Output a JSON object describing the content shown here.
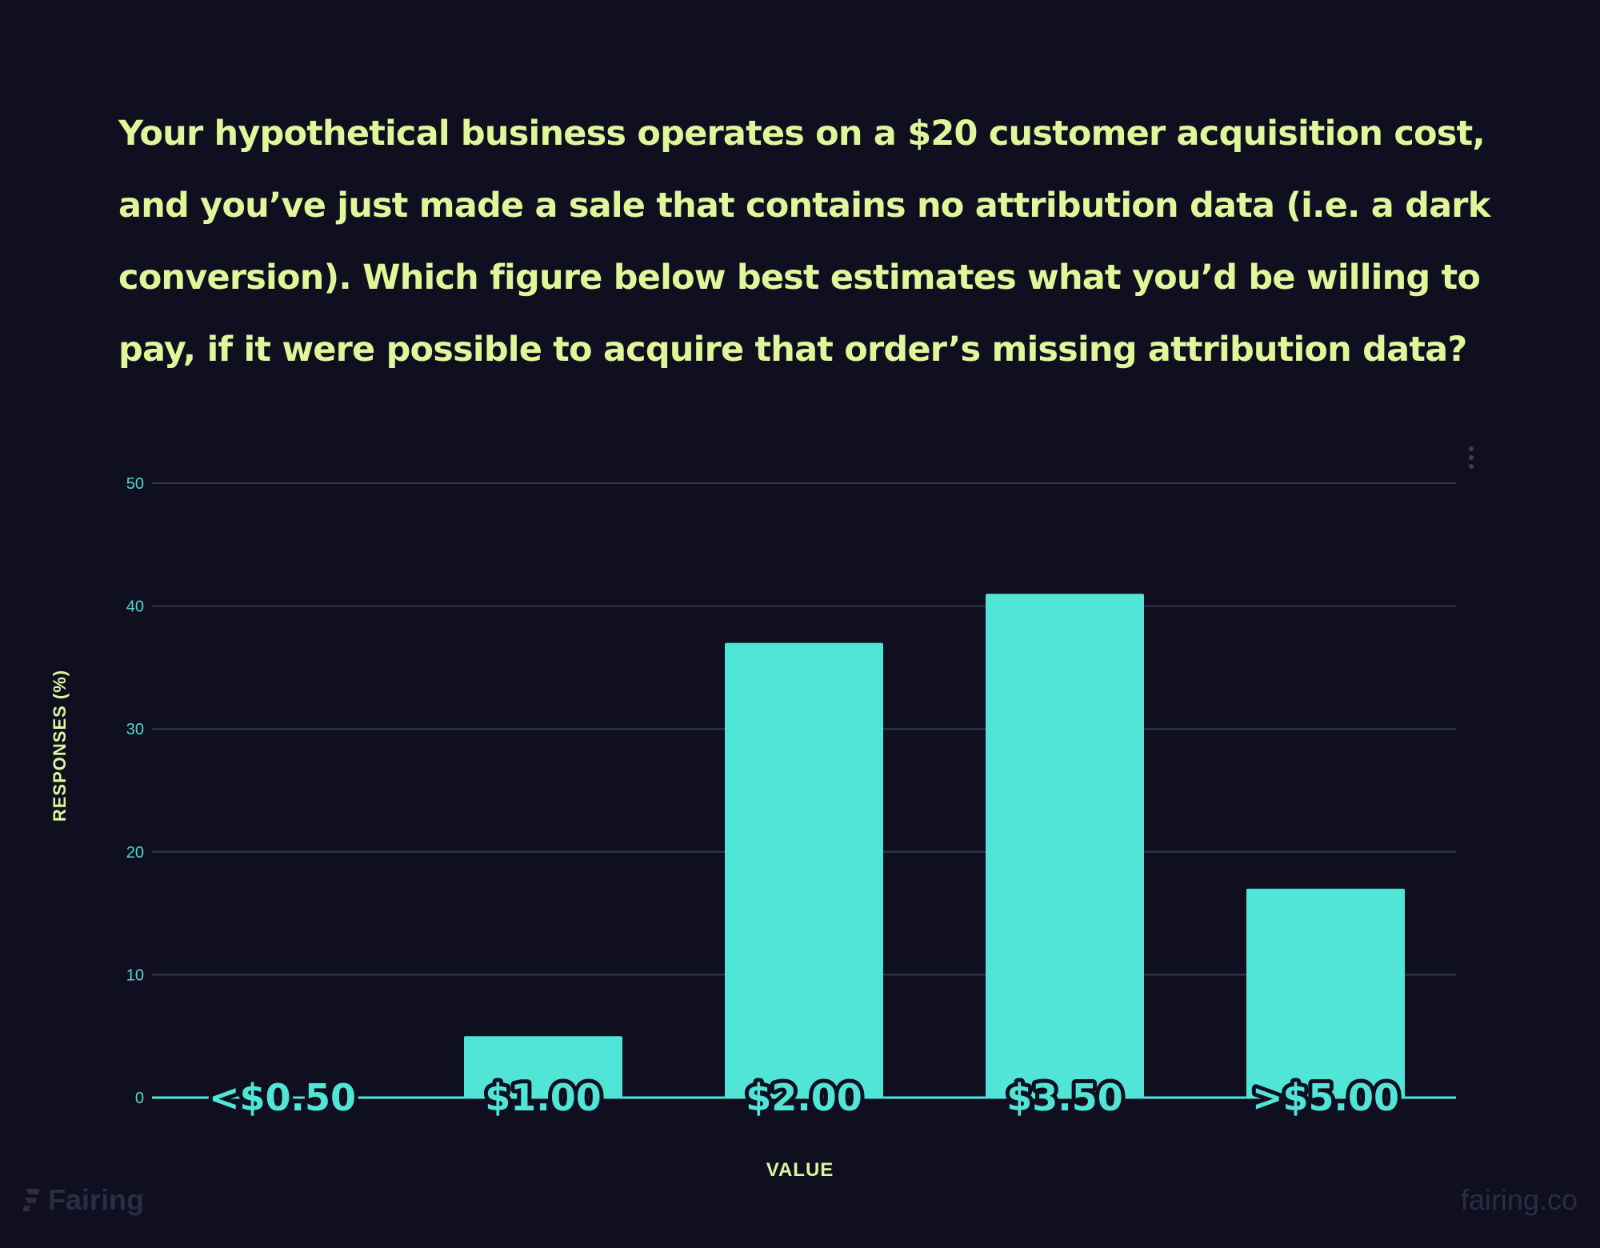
{
  "question": "Your hypothetical business operates on a $20 customer acquisition cost, and you’ve just made a sale that contains no attribution data (i.e. a dark conversion). Which figure below best estimates what you’d be willing to pay, if it were possible to acquire that order’s missing attribution data?",
  "chart_data": {
    "type": "bar",
    "categories": [
      "<$0.50",
      "$1.00",
      "$2.00",
      "$3.50",
      ">$5.00"
    ],
    "values": [
      0,
      5,
      37,
      41,
      17
    ],
    "title": "",
    "xlabel": "VALUE",
    "ylabel": "RESPONSES (%)",
    "ylim": [
      0,
      50
    ],
    "yticks": [
      "0",
      "10",
      "20",
      "30",
      "40",
      "50"
    ],
    "grid": true,
    "legend": "none",
    "bar_color": "#51e5d8",
    "axis_label_color": "#e1f59a",
    "tick_color": "#4fd9cd",
    "grid_color": "#34344f"
  },
  "footer": {
    "logo_text": "Fairing",
    "site": "fairing.co"
  },
  "colors": {
    "background": "#0f0f20",
    "accent_text": "#e1f59a",
    "bars": "#51e5d8",
    "watermark": "#2c2c44"
  },
  "icons": {
    "menu": "more-vertical-icon",
    "logo": "fairing-logo-icon"
  }
}
